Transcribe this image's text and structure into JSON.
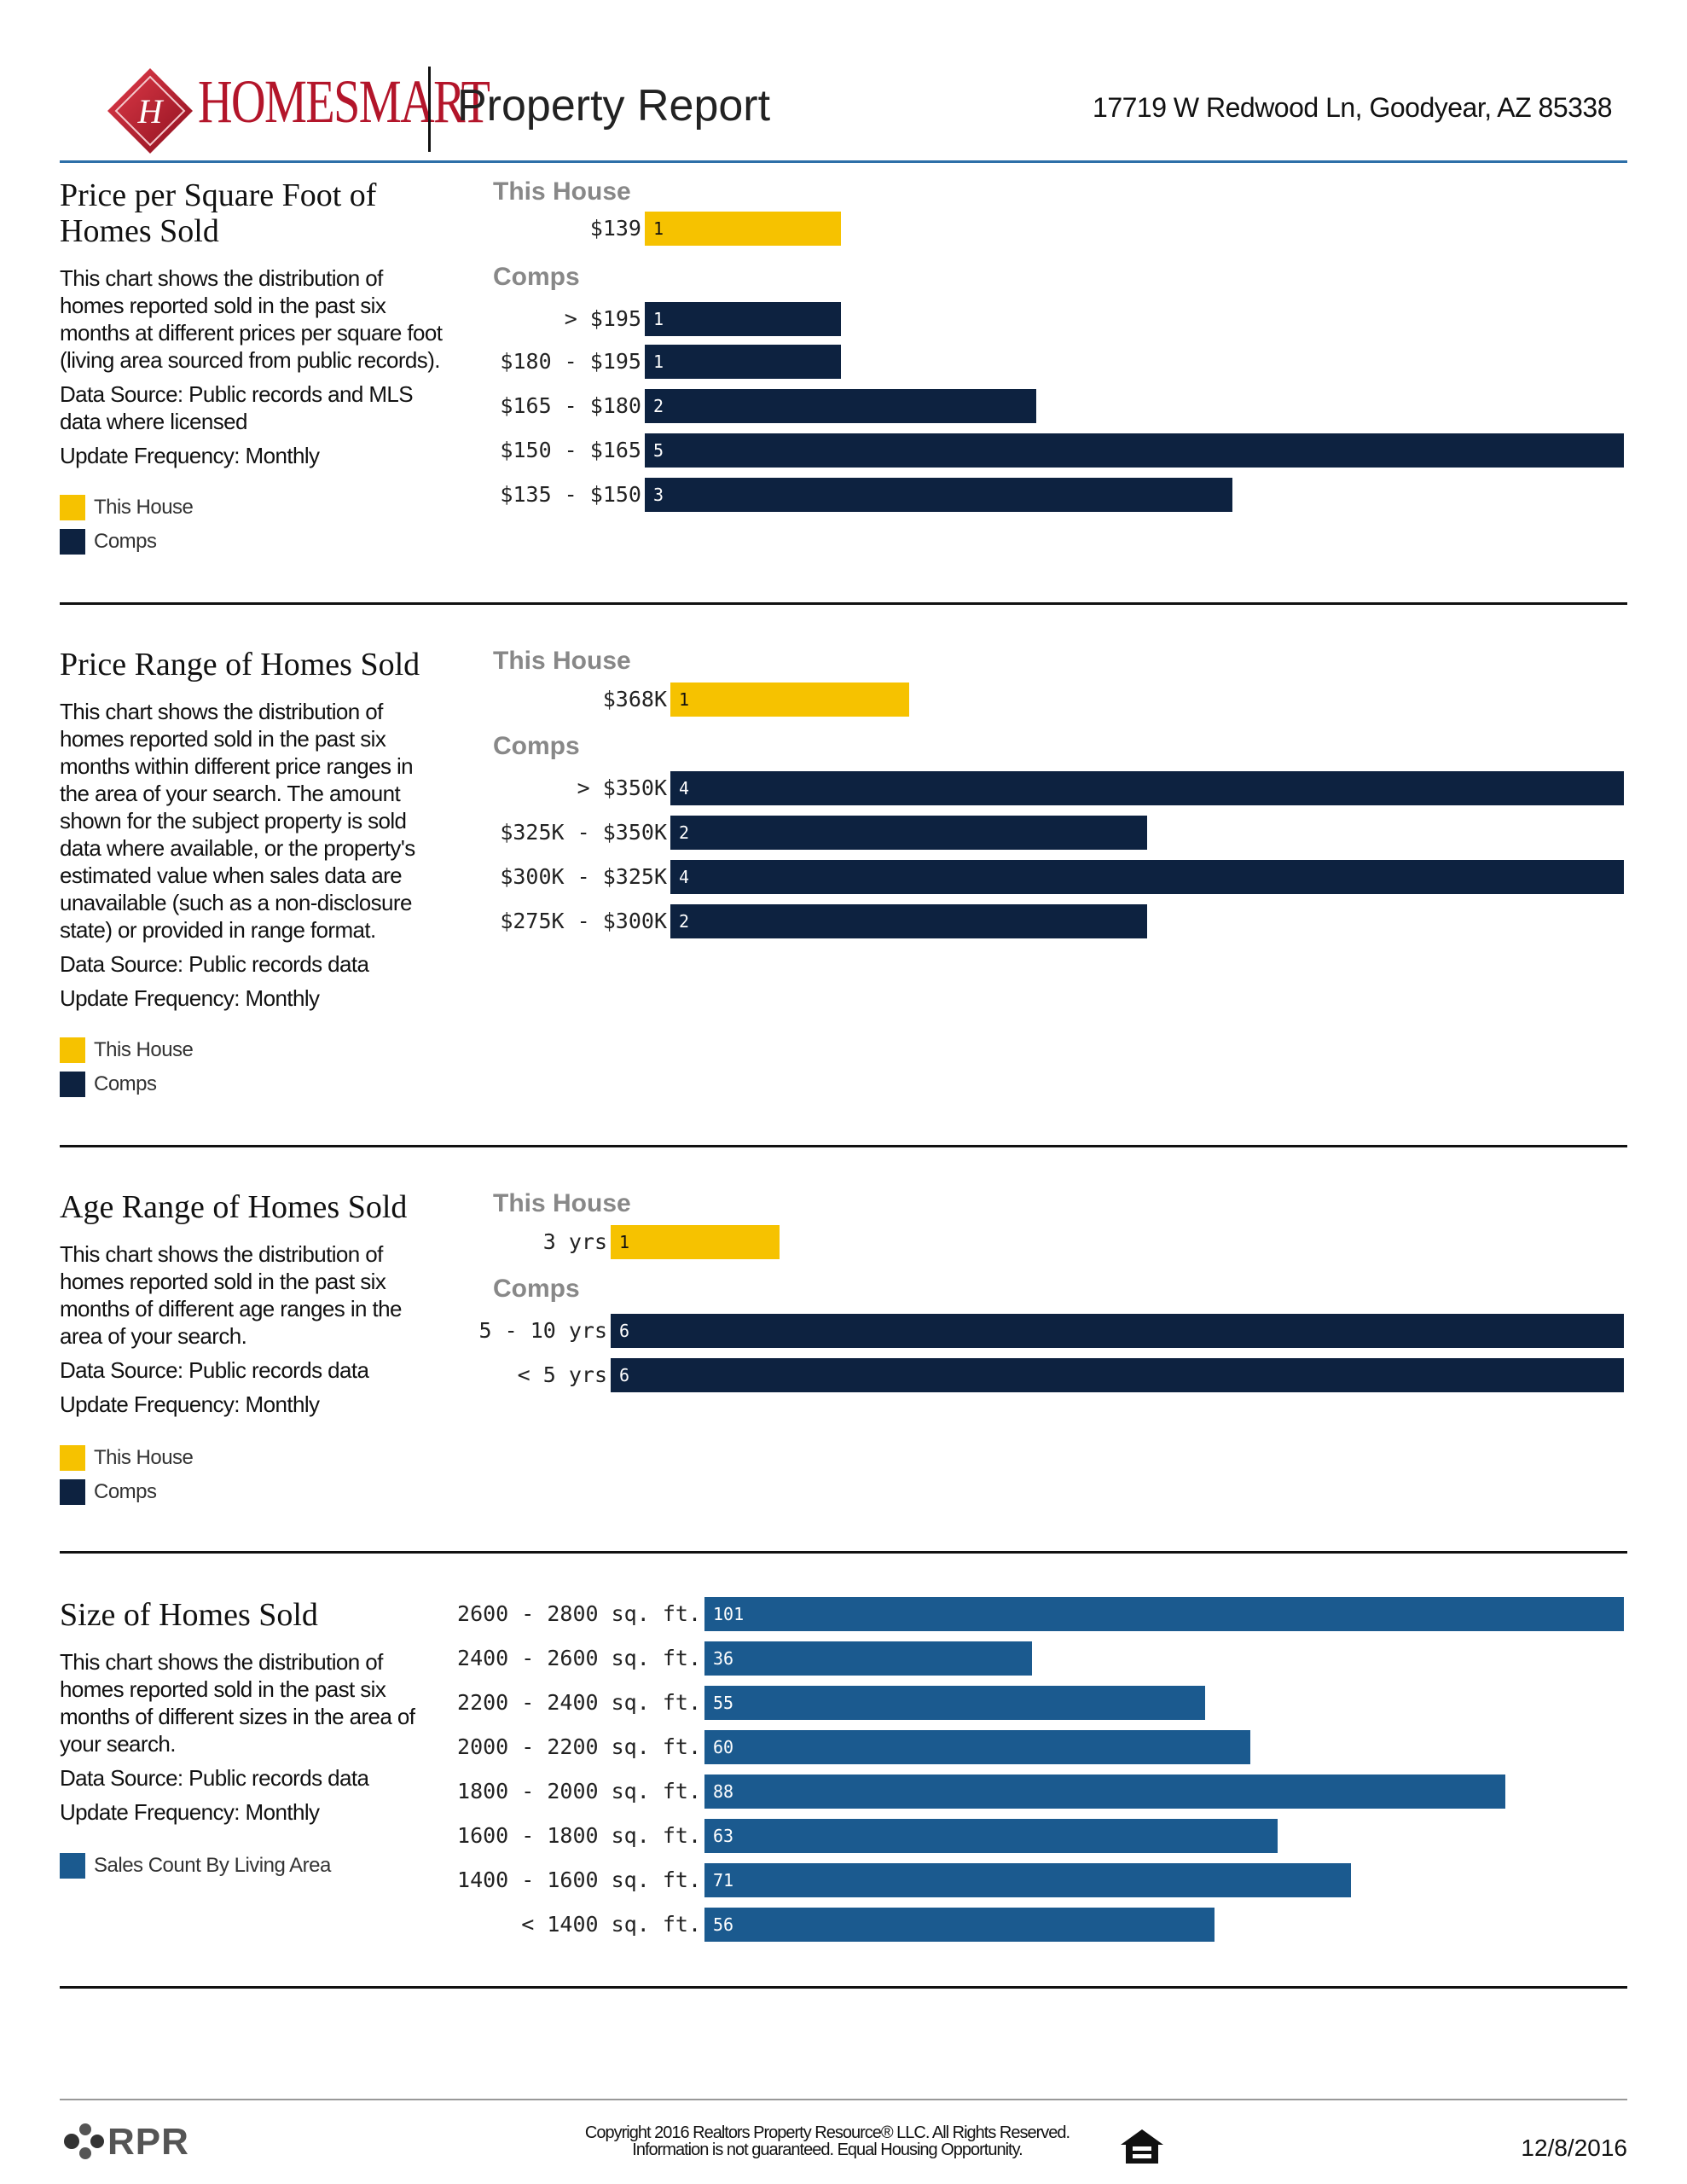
{
  "header": {
    "brand_wordmark": "HOMESMART",
    "report_title": "Property Report",
    "address": "17719 W Redwood Ln, Goodyear, AZ 85338"
  },
  "colors": {
    "this_house": "#f6c200",
    "comps": "#0d2240",
    "sales": "#1b5a8f",
    "brand_red": "#b3152a",
    "header_rule": "#2d6fa8"
  },
  "legend": {
    "this_house": "This House",
    "comps": "Comps",
    "sales": "Sales Count By Living Area"
  },
  "sections": [
    {
      "title_lines": [
        "Price per Square Foot of",
        "Homes Sold"
      ],
      "description_lines": [
        "This chart shows the distribution of",
        "homes reported sold in the past six",
        "months at different prices per square foot",
        "(living area sourced from public records)."
      ],
      "source_lines": [
        "Data Source: Public records and MLS",
        "data where licensed"
      ],
      "update": "Update Frequency: Monthly"
    },
    {
      "title_lines": [
        "Price Range of Homes Sold"
      ],
      "description_lines": [
        "This chart shows the distribution of",
        "homes reported sold in the past six",
        "months within different price ranges in",
        "the area of your search. The amount",
        "shown for the subject property is sold",
        "data where available, or the property's",
        "estimated value when sales data are",
        "unavailable (such as a non-disclosure",
        "state) or provided in range format."
      ],
      "source_lines": [
        "Data Source: Public records data"
      ],
      "update": "Update Frequency: Monthly"
    },
    {
      "title_lines": [
        "Age Range of Homes Sold"
      ],
      "description_lines": [
        "This chart shows the distribution of",
        "homes reported sold in the past six",
        "months of different age ranges in the",
        "area of your search."
      ],
      "source_lines": [
        "Data Source: Public records data"
      ],
      "update": "Update Frequency: Monthly"
    },
    {
      "title_lines": [
        "Size of Homes Sold"
      ],
      "description_lines": [
        "This chart shows the distribution of",
        "homes reported sold in the past six",
        "months of different sizes in the area of",
        "your search."
      ],
      "source_lines": [
        "Data Source: Public records data"
      ],
      "update": "Update Frequency: Monthly"
    }
  ],
  "chart_data": [
    {
      "type": "bar",
      "orientation": "horizontal",
      "groups": {
        "this_house": {
          "label": "This House",
          "categories": [
            "$139"
          ],
          "values": [
            1
          ]
        },
        "comps": {
          "label": "Comps",
          "categories": [
            "> $195",
            "$180 - $195",
            "$165 - $180",
            "$150 - $165",
            "$135 - $150"
          ],
          "values": [
            1,
            1,
            2,
            5,
            3
          ]
        }
      },
      "xlim": [
        0,
        5
      ]
    },
    {
      "type": "bar",
      "orientation": "horizontal",
      "groups": {
        "this_house": {
          "label": "This House",
          "categories": [
            "$368K"
          ],
          "values": [
            1
          ]
        },
        "comps": {
          "label": "Comps",
          "categories": [
            "> $350K",
            "$325K - $350K",
            "$300K - $325K",
            "$275K - $300K"
          ],
          "values": [
            4,
            2,
            4,
            2
          ]
        }
      },
      "xlim": [
        0,
        4
      ]
    },
    {
      "type": "bar",
      "orientation": "horizontal",
      "groups": {
        "this_house": {
          "label": "This House",
          "categories": [
            "3 yrs"
          ],
          "values": [
            1
          ]
        },
        "comps": {
          "label": "Comps",
          "categories": [
            "5 - 10 yrs",
            "< 5 yrs"
          ],
          "values": [
            6,
            6
          ]
        }
      },
      "xlim": [
        0,
        6
      ]
    },
    {
      "type": "bar",
      "orientation": "horizontal",
      "categories": [
        "2600 - 2800 sq. ft.",
        "2400 - 2600 sq. ft.",
        "2200 - 2400 sq. ft.",
        "2000 - 2200 sq. ft.",
        "1800 - 2000 sq. ft.",
        "1600 - 1800 sq. ft.",
        "1400 - 1600 sq. ft.",
        "< 1400 sq. ft."
      ],
      "series": [
        {
          "name": "Sales Count By Living Area",
          "values": [
            101,
            36,
            55,
            60,
            88,
            63,
            71,
            56
          ]
        }
      ],
      "xlim": [
        0,
        101
      ]
    }
  ],
  "footer": {
    "logo_text": "RPR",
    "copyright_line1": "Copyright 2016 Realtors Property Resource® LLC. All Rights Reserved.",
    "copyright_line2": "Information is not guaranteed. Equal Housing Opportunity.",
    "date": "12/8/2016"
  }
}
